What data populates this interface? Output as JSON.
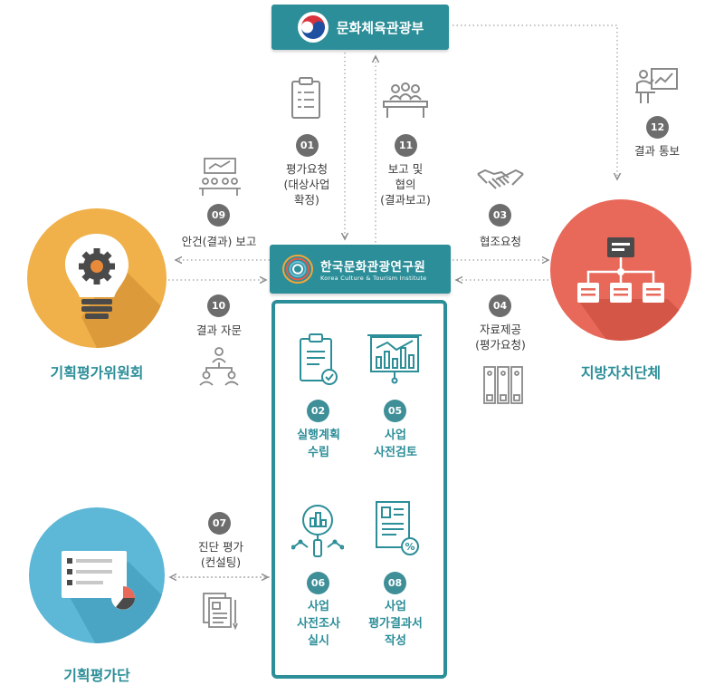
{
  "entities": {
    "ministry": "문화체육관광부",
    "institute_kr": "한국문화관광연구원",
    "institute_en": "Korea Culture & Tourism Institute",
    "committee": "기획평가위원회",
    "local_gov": "지방자치단체",
    "eval_team": "기획평가단"
  },
  "steps": {
    "s01": {
      "num": "01",
      "l1": "평가요청",
      "l2": "(대상사업",
      "l3": "확정)"
    },
    "s02": {
      "num": "02",
      "l1": "실행계획",
      "l2": "수립"
    },
    "s03": {
      "num": "03",
      "l1": "협조요청"
    },
    "s04": {
      "num": "04",
      "l1": "자료제공",
      "l2": "(평가요청)"
    },
    "s05": {
      "num": "05",
      "l1": "사업",
      "l2": "사전검토"
    },
    "s06": {
      "num": "06",
      "l1": "사업",
      "l2": "사전조사",
      "l3": "실시"
    },
    "s07": {
      "num": "07",
      "l1": "진단 평가",
      "l2": "(컨설팅)"
    },
    "s08": {
      "num": "08",
      "l1": "사업",
      "l2": "평가결과서",
      "l3": "작성"
    },
    "s09": {
      "num": "09",
      "l1": "안건(결과) 보고"
    },
    "s10": {
      "num": "10",
      "l1": "결과 자문"
    },
    "s11": {
      "num": "11",
      "l1": "보고 및",
      "l2": "협의",
      "l3": "(결과보고)"
    },
    "s12": {
      "num": "12",
      "l1": "결과 통보"
    }
  },
  "colors": {
    "teal": "#2c8e98",
    "badge_gray": "#6d6d6d",
    "committee_orange": "#f0b04a",
    "local_red": "#e8695a",
    "team_blue": "#5db7d6"
  }
}
